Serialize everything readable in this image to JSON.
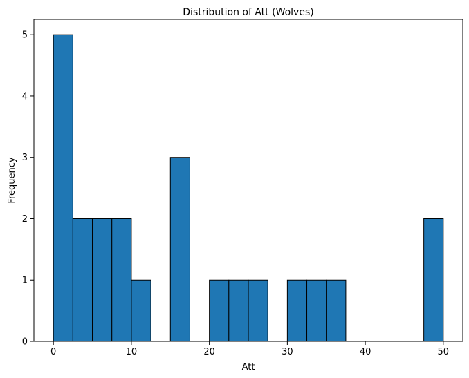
{
  "chart_data": {
    "type": "bar",
    "title": "Distribution of Att (Wolves)",
    "xlabel": "Att",
    "ylabel": "Frequency",
    "bin_edges": [
      0,
      2.5,
      5,
      7.5,
      10,
      12.5,
      15,
      17.5,
      20,
      22.5,
      25,
      27.5,
      30,
      32.5,
      35,
      37.5,
      40,
      42.5,
      45,
      47.5,
      50
    ],
    "values": [
      5,
      2,
      2,
      2,
      1,
      0,
      3,
      0,
      1,
      1,
      1,
      0,
      1,
      1,
      1,
      0,
      0,
      0,
      0,
      2
    ],
    "xlim": [
      -2.5,
      52.5
    ],
    "ylim": [
      0,
      5.25
    ],
    "xticks": [
      0,
      10,
      20,
      30,
      40,
      50
    ],
    "yticks": [
      0,
      1,
      2,
      3,
      4,
      5
    ],
    "grid": false,
    "colors": {
      "bar_fill": "#1f77b4",
      "bar_edge": "#000000"
    }
  }
}
